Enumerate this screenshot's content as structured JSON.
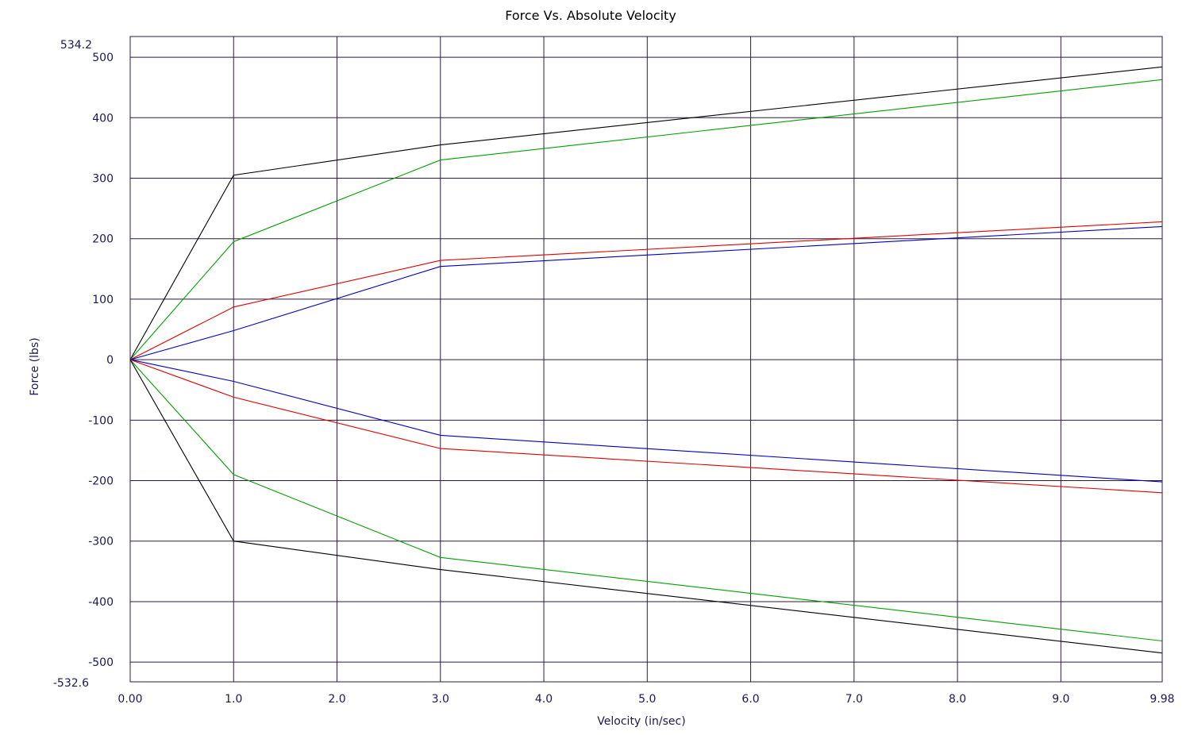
{
  "chart_data": {
    "type": "line",
    "title": "Force Vs. Absolute Velocity",
    "xlabel": "Velocity (in/sec)",
    "ylabel": "Force (lbs)",
    "xlim": [
      0.0,
      9.98
    ],
    "ylim": [
      -532.6,
      534.2
    ],
    "ylim_labels": {
      "max": "534.2",
      "min": "-532.6"
    },
    "xticks": [
      {
        "value": 0.0,
        "label": "0.00"
      },
      {
        "value": 1.0,
        "label": "1.0"
      },
      {
        "value": 2.0,
        "label": "2.0"
      },
      {
        "value": 3.0,
        "label": "3.0"
      },
      {
        "value": 4.0,
        "label": "4.0"
      },
      {
        "value": 5.0,
        "label": "5.0"
      },
      {
        "value": 6.0,
        "label": "6.0"
      },
      {
        "value": 7.0,
        "label": "7.0"
      },
      {
        "value": 8.0,
        "label": "8.0"
      },
      {
        "value": 9.0,
        "label": "9.0"
      },
      {
        "value": 9.98,
        "label": "9.98"
      }
    ],
    "yticks": [
      {
        "value": 500,
        "label": "500"
      },
      {
        "value": 400,
        "label": "400"
      },
      {
        "value": 300,
        "label": "300"
      },
      {
        "value": 200,
        "label": "200"
      },
      {
        "value": 100,
        "label": "100"
      },
      {
        "value": 0,
        "label": "0"
      },
      {
        "value": -100,
        "label": "-100"
      },
      {
        "value": -200,
        "label": "-200"
      },
      {
        "value": -300,
        "label": "-300"
      },
      {
        "value": -400,
        "label": "-400"
      },
      {
        "value": -500,
        "label": "-500"
      }
    ],
    "grid": true,
    "legend": "none",
    "series": [
      {
        "color": "#000000",
        "x": [
          0,
          1.0,
          3.0,
          9.98
        ],
        "y": [
          0,
          305,
          355,
          484
        ]
      },
      {
        "color": "#00a000",
        "x": [
          0,
          1.0,
          3.0,
          9.98
        ],
        "y": [
          0,
          195,
          330,
          463
        ]
      },
      {
        "color": "#e00000",
        "x": [
          0,
          1.0,
          3.0,
          9.98
        ],
        "y": [
          0,
          87,
          164,
          228
        ]
      },
      {
        "color": "#0000c0",
        "x": [
          0,
          1.0,
          3.0,
          9.98
        ],
        "y": [
          0,
          48,
          154,
          220
        ]
      },
      {
        "color": "#0000c0",
        "x": [
          0,
          1.0,
          3.0,
          9.98
        ],
        "y": [
          0,
          -36,
          -125,
          -202
        ]
      },
      {
        "color": "#e00000",
        "x": [
          0,
          1.0,
          3.0,
          9.98
        ],
        "y": [
          0,
          -62,
          -147,
          -220
        ]
      },
      {
        "color": "#00a000",
        "x": [
          0,
          1.0,
          3.0,
          9.98
        ],
        "y": [
          0,
          -190,
          -327,
          -465
        ]
      },
      {
        "color": "#000000",
        "x": [
          0,
          1.0,
          3.0,
          9.98
        ],
        "y": [
          0,
          -300,
          -347,
          -485
        ]
      }
    ]
  }
}
